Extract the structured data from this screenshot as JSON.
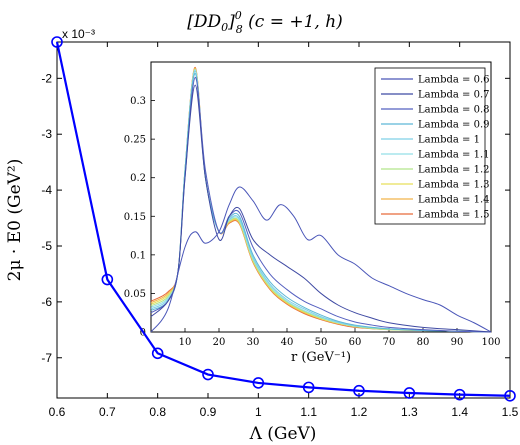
{
  "colors": {
    "main_line": "#0000ff",
    "axis": "#000000",
    "inset_series": [
      "#4a56b8",
      "#3f4aa3",
      "#5560c0",
      "#5db7d6",
      "#7fd0e6",
      "#93dfe8",
      "#b2e58a",
      "#e8df5a",
      "#f2b54a",
      "#e66a3a"
    ]
  },
  "chart_data": [
    {
      "type": "line",
      "title": "[DD0]^0_8 (c = +1, h)",
      "title_parts": {
        "main": "[DD",
        "sub0": "0",
        "close": "]",
        "sup": "0",
        "sub8": "8",
        "rest": " (c = +1, h)"
      },
      "xlabel": "Λ (GeV)",
      "ylabel": "2μ · E0 (GeV²)",
      "y_multiplier": "x 10⁻³",
      "x": [
        0.6,
        0.7,
        0.8,
        0.9,
        1.0,
        1.1,
        1.2,
        1.3,
        1.4,
        1.5
      ],
      "y": [
        -1.35,
        -5.6,
        -6.92,
        -7.3,
        -7.45,
        -7.53,
        -7.59,
        -7.63,
        -7.66,
        -7.68
      ],
      "xlim": [
        0.6,
        1.5
      ],
      "ylim": [
        -7.72,
        -1.35
      ],
      "xticks": [
        "0.6",
        "0.7",
        "0.8",
        "0.9",
        "1",
        "1.1",
        "1.2",
        "1.3",
        "1.4",
        "1.5"
      ],
      "yticks": [
        "-2",
        "-3",
        "-4",
        "-5",
        "-6",
        "-7"
      ],
      "marker": "circle"
    },
    {
      "type": "line",
      "xlabel": "r (GeV⁻¹)",
      "xlim": [
        0,
        100
      ],
      "ylim": [
        0,
        0.35
      ],
      "xticks": [
        "10",
        "20",
        "30",
        "40",
        "50",
        "60",
        "70",
        "80",
        "90",
        "100"
      ],
      "yticks": [
        "0",
        "0.05",
        "0.1",
        "0.15",
        "0.2",
        "0.25",
        "0.3"
      ],
      "legend_placement": "top-right",
      "series": [
        {
          "name": "Lambda = 0.6",
          "x": [
            0,
            5,
            10,
            13,
            16,
            20,
            23,
            26,
            30,
            34,
            38,
            42,
            46,
            50,
            55,
            60,
            65,
            70,
            75,
            80,
            85,
            90,
            95,
            100
          ],
          "y": [
            0,
            0.03,
            0.11,
            0.13,
            0.115,
            0.13,
            0.165,
            0.188,
            0.17,
            0.145,
            0.165,
            0.15,
            0.12,
            0.125,
            0.1,
            0.088,
            0.07,
            0.06,
            0.05,
            0.042,
            0.035,
            0.022,
            0.012,
            0
          ]
        },
        {
          "name": "Lambda = 0.7",
          "x": [
            0,
            5,
            8,
            10,
            13,
            16,
            20,
            23,
            26,
            30,
            35,
            40,
            45,
            50,
            55,
            60,
            65,
            70,
            80,
            90,
            100
          ],
          "y": [
            0.02,
            0.04,
            0.08,
            0.2,
            0.32,
            0.2,
            0.12,
            0.15,
            0.16,
            0.12,
            0.1,
            0.085,
            0.07,
            0.05,
            0.035,
            0.025,
            0.018,
            0.012,
            0.006,
            0.003,
            0
          ]
        },
        {
          "name": "Lambda = 0.8",
          "x": [
            0,
            5,
            8,
            10,
            13,
            16,
            20,
            23,
            26,
            30,
            35,
            40,
            45,
            50,
            55,
            60,
            65,
            70,
            80,
            90,
            100
          ],
          "y": [
            0.025,
            0.04,
            0.08,
            0.2,
            0.33,
            0.21,
            0.13,
            0.15,
            0.155,
            0.11,
            0.075,
            0.055,
            0.04,
            0.03,
            0.02,
            0.013,
            0.009,
            0.006,
            0.003,
            0.001,
            0
          ]
        },
        {
          "name": "Lambda = 0.9",
          "x": [
            0,
            5,
            8,
            10,
            13,
            16,
            20,
            23,
            26,
            30,
            35,
            40,
            45,
            50,
            55,
            60,
            70,
            80,
            90,
            100
          ],
          "y": [
            0.028,
            0.04,
            0.08,
            0.21,
            0.335,
            0.2,
            0.13,
            0.148,
            0.15,
            0.1,
            0.065,
            0.045,
            0.032,
            0.022,
            0.014,
            0.009,
            0.004,
            0.002,
            0.001,
            0
          ]
        },
        {
          "name": "Lambda = 1",
          "x": [
            0,
            5,
            8,
            10,
            13,
            16,
            20,
            23,
            26,
            30,
            35,
            40,
            45,
            50,
            55,
            60,
            70,
            80,
            90,
            100
          ],
          "y": [
            0.03,
            0.042,
            0.08,
            0.21,
            0.338,
            0.2,
            0.13,
            0.146,
            0.147,
            0.097,
            0.062,
            0.042,
            0.03,
            0.02,
            0.013,
            0.008,
            0.004,
            0.002,
            0.001,
            0
          ]
        },
        {
          "name": "Lambda = 1.1",
          "x": [
            0,
            5,
            8,
            10,
            13,
            16,
            20,
            23,
            26,
            30,
            35,
            40,
            45,
            50,
            55,
            60,
            70,
            80,
            90,
            100
          ],
          "y": [
            0.032,
            0.044,
            0.08,
            0.21,
            0.34,
            0.2,
            0.13,
            0.145,
            0.145,
            0.095,
            0.06,
            0.04,
            0.028,
            0.019,
            0.012,
            0.008,
            0.004,
            0.002,
            0.001,
            0
          ]
        },
        {
          "name": "Lambda = 1.2",
          "x": [
            0,
            5,
            8,
            10,
            13,
            16,
            20,
            23,
            26,
            30,
            35,
            40,
            45,
            50,
            55,
            60,
            70,
            80,
            90,
            100
          ],
          "y": [
            0.034,
            0.046,
            0.08,
            0.21,
            0.34,
            0.2,
            0.13,
            0.144,
            0.143,
            0.093,
            0.058,
            0.039,
            0.027,
            0.018,
            0.012,
            0.007,
            0.003,
            0.002,
            0.001,
            0
          ]
        },
        {
          "name": "Lambda = 1.3",
          "x": [
            0,
            5,
            8,
            10,
            13,
            16,
            20,
            23,
            26,
            30,
            35,
            40,
            45,
            50,
            55,
            60,
            70,
            80,
            90,
            100
          ],
          "y": [
            0.036,
            0.048,
            0.08,
            0.21,
            0.341,
            0.2,
            0.13,
            0.143,
            0.142,
            0.092,
            0.057,
            0.038,
            0.026,
            0.017,
            0.011,
            0.007,
            0.003,
            0.002,
            0.001,
            0
          ]
        },
        {
          "name": "Lambda = 1.4",
          "x": [
            0,
            5,
            8,
            10,
            13,
            16,
            20,
            23,
            26,
            30,
            35,
            40,
            45,
            50,
            55,
            60,
            70,
            80,
            90,
            100
          ],
          "y": [
            0.038,
            0.05,
            0.08,
            0.21,
            0.342,
            0.2,
            0.13,
            0.142,
            0.141,
            0.091,
            0.056,
            0.037,
            0.025,
            0.017,
            0.011,
            0.007,
            0.003,
            0.002,
            0.001,
            0
          ]
        },
        {
          "name": "Lambda = 1.5",
          "x": [
            0,
            5,
            8,
            10,
            13,
            16,
            20,
            23,
            26,
            30,
            35,
            40,
            45,
            50,
            55,
            60,
            70,
            80,
            90,
            100
          ],
          "y": [
            0.04,
            0.052,
            0.08,
            0.21,
            0.343,
            0.2,
            0.13,
            0.141,
            0.14,
            0.09,
            0.055,
            0.036,
            0.024,
            0.016,
            0.01,
            0.006,
            0.003,
            0.002,
            0.001,
            0
          ]
        }
      ]
    }
  ]
}
